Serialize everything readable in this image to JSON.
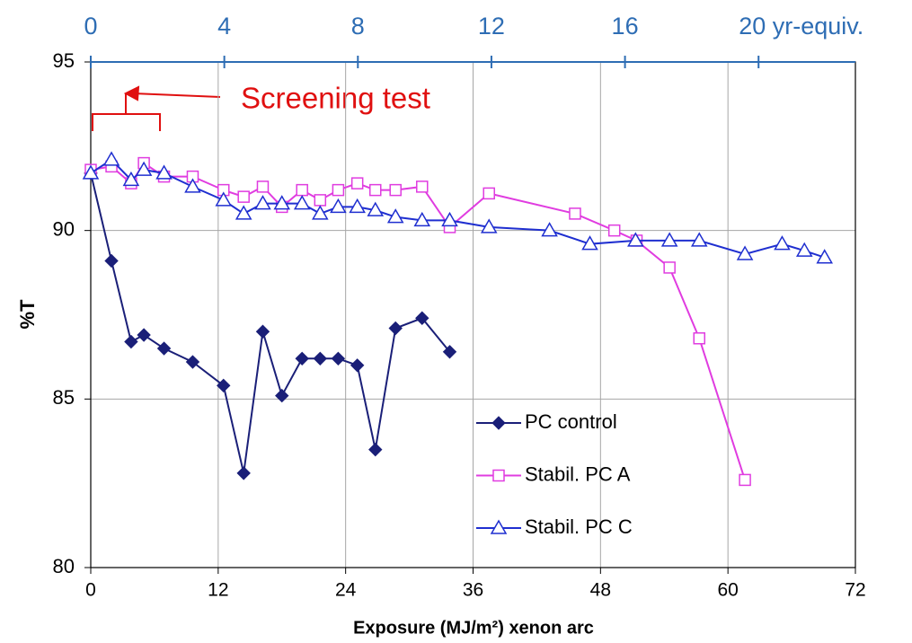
{
  "chart_data": {
    "type": "line",
    "xlabel": "Exposure (MJ/m²) xenon arc",
    "ylabel": "%T",
    "annotation": "Screening test",
    "xlim": [
      0,
      72
    ],
    "xticks": [
      0,
      12,
      24,
      36,
      48,
      60,
      72
    ],
    "ylim": [
      80,
      95
    ],
    "yticks": [
      80,
      85,
      90,
      95
    ],
    "x2lim": [
      0,
      22.9
    ],
    "x2ticks": [
      0,
      4,
      8,
      12,
      16,
      {
        "value": 20,
        "label": "20 yr-equiv."
      }
    ],
    "grid": true,
    "legend": "lower center",
    "series": [
      {
        "name": "PC control",
        "color": "#1a1f78",
        "marker": "diamond",
        "x": [
          0,
          1.95,
          3.8,
          5.0,
          6.9,
          9.6,
          12.5,
          14.4,
          16.2,
          18.0,
          19.9,
          21.6,
          23.3,
          25.1,
          26.8,
          28.7,
          31.2,
          33.8
        ],
        "values": [
          91.7,
          89.1,
          86.7,
          86.9,
          86.5,
          86.1,
          85.4,
          82.8,
          87.0,
          85.1,
          86.2,
          86.2,
          86.2,
          86.0,
          83.5,
          87.1,
          87.4,
          86.4
        ]
      },
      {
        "name": "Stabil. PC A",
        "color": "#e03ce0",
        "marker": "square",
        "x": [
          0,
          1.95,
          3.8,
          5.0,
          6.9,
          9.6,
          12.5,
          14.4,
          16.2,
          18.0,
          19.9,
          21.6,
          23.3,
          25.1,
          26.8,
          28.7,
          31.2,
          33.8,
          37.5,
          45.6,
          49.3,
          51.4,
          54.5,
          57.3,
          61.6
        ],
        "values": [
          91.8,
          91.9,
          91.4,
          92.0,
          91.6,
          91.6,
          91.2,
          91.0,
          91.3,
          90.7,
          91.2,
          90.9,
          91.2,
          91.4,
          91.2,
          91.2,
          91.3,
          90.1,
          91.1,
          90.5,
          90.0,
          89.7,
          88.9,
          86.8,
          82.6
        ]
      },
      {
        "name": "Stabil. PC C",
        "color": "#1f2fd0",
        "marker": "triangle",
        "x": [
          0,
          1.95,
          3.8,
          5.0,
          6.9,
          9.6,
          12.5,
          14.4,
          16.2,
          18.0,
          19.9,
          21.6,
          23.3,
          25.1,
          26.8,
          28.7,
          31.2,
          33.8,
          37.5,
          43.2,
          47.0,
          51.3,
          54.5,
          57.3,
          61.6,
          65.1,
          67.2,
          69.1
        ],
        "values": [
          91.7,
          92.1,
          91.5,
          91.8,
          91.7,
          91.3,
          90.9,
          90.5,
          90.8,
          90.8,
          90.8,
          90.5,
          90.7,
          90.7,
          90.6,
          90.4,
          90.3,
          90.3,
          90.1,
          90.0,
          89.6,
          89.7,
          89.7,
          89.7,
          89.3,
          89.6,
          89.4,
          89.2
        ]
      }
    ]
  }
}
